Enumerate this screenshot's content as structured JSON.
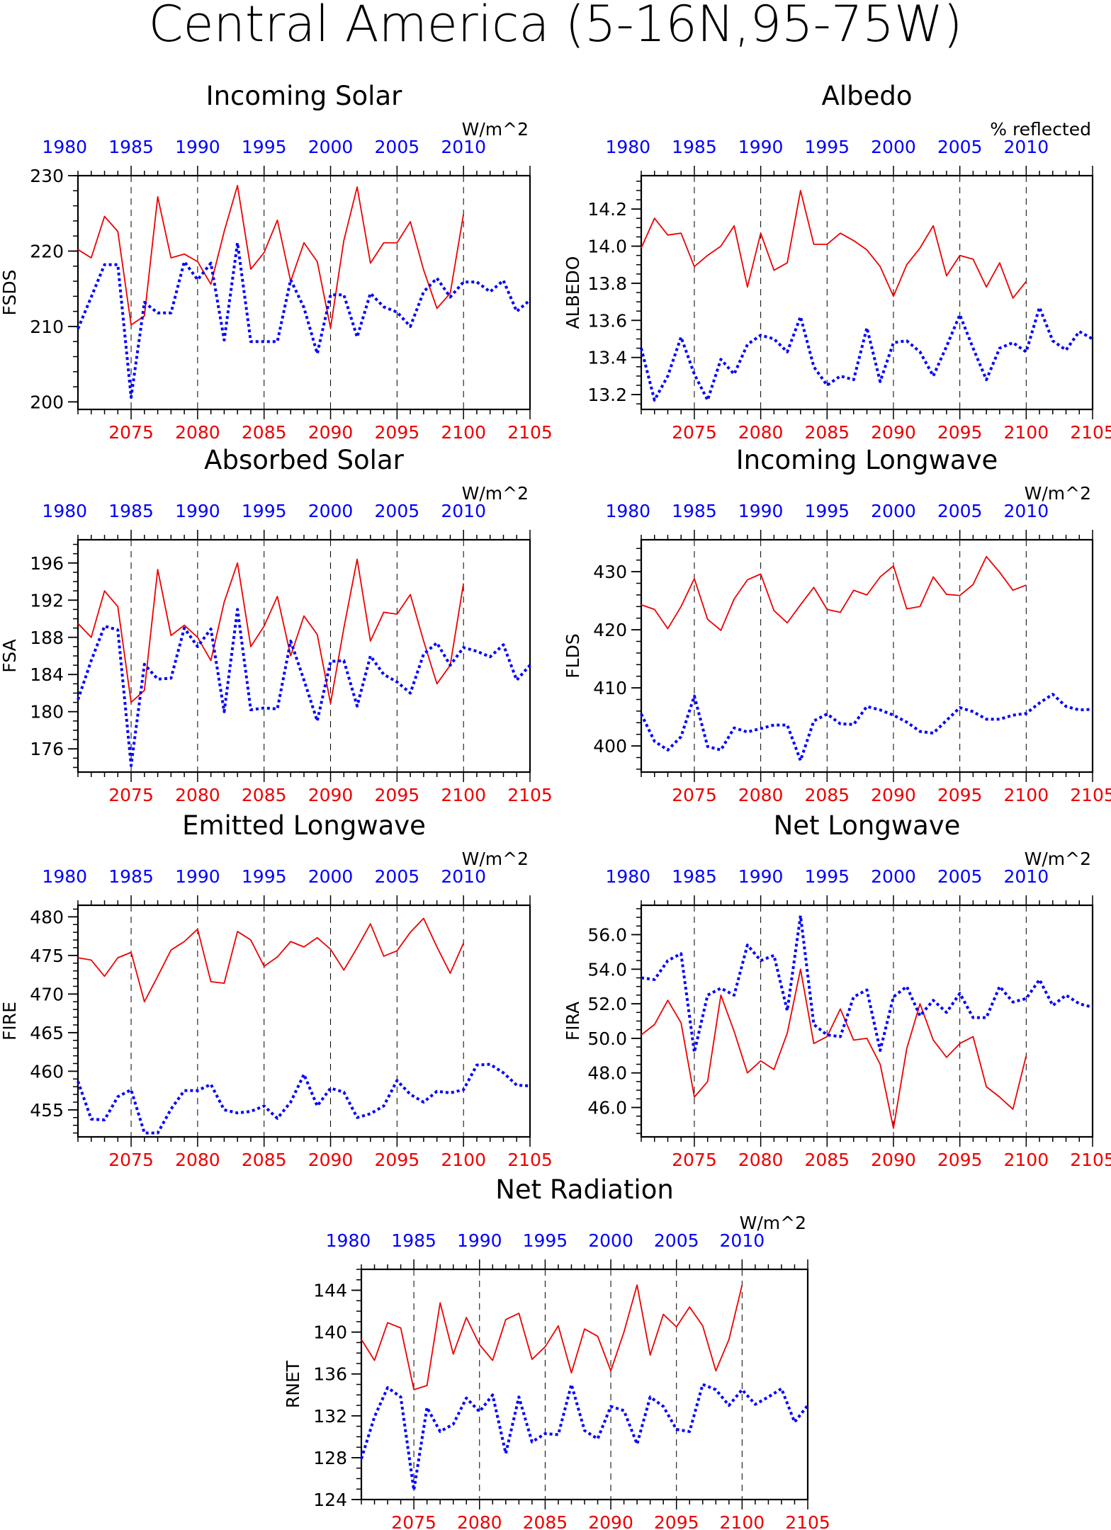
{
  "page_title": "Central America (5-16N,95-75W)",
  "colors": {
    "model_line": "#ee0000",
    "obs_line": "#0000ff",
    "model_axis_text": "#ee0000",
    "obs_axis_text": "#0000ff",
    "frame": "#000000",
    "grid": "#000000"
  },
  "chart_data": [
    {
      "id": "fsds",
      "type": "line",
      "title": "Incoming Solar",
      "units": "W/m^2",
      "ylabel": "FSDS",
      "x_bottom_ticks": [
        2075,
        2080,
        2085,
        2090,
        2095,
        2100,
        2105
      ],
      "x_top_ticks": [
        "1980",
        "1985",
        "1990",
        "1995",
        "2000",
        "2005",
        "2010"
      ],
      "xlim": [
        2071,
        2105
      ],
      "ylim": [
        199,
        230
      ],
      "yticks": [
        "200",
        "210",
        "220",
        "230"
      ],
      "ytick_values": [
        200,
        210,
        220,
        230
      ],
      "ytick_minor_step": 2,
      "grid_x": [
        2075,
        2080,
        2085,
        2090,
        2095,
        2100
      ],
      "series": [
        {
          "style": "solid",
          "color": "#ee0000",
          "x_start": 2071,
          "values": [
            220.2,
            219.1,
            224.6,
            222.6,
            210.2,
            211.4,
            227.2,
            219.1,
            219.6,
            218.6,
            215.6,
            222.6,
            228.7,
            217.6,
            219.8,
            224.1,
            216.0,
            221.1,
            218.6,
            209.8,
            221.4,
            228.5,
            218.4,
            221.1,
            221.1,
            223.9,
            217.5,
            212.4,
            214.4,
            224.9
          ]
        },
        {
          "style": "dotted",
          "color": "#0000ff",
          "x_start": 1980,
          "values": [
            209.7,
            213.9,
            218.2,
            218.2,
            200.6,
            213.2,
            211.8,
            211.8,
            218.6,
            216.2,
            218.4,
            208.2,
            221.1,
            208.0,
            208.0,
            208.0,
            216.2,
            212.5,
            206.4,
            214.2,
            214.2,
            208.6,
            214.4,
            212.6,
            211.9,
            210.0,
            214.6,
            216.4,
            213.9,
            215.9,
            215.9,
            214.6,
            216.1,
            212.0,
            213.5
          ]
        }
      ]
    },
    {
      "id": "albedo",
      "type": "line",
      "title": "Albedo",
      "units": "% reflected",
      "ylabel": "ALBEDO",
      "x_bottom_ticks": [
        2075,
        2080,
        2085,
        2090,
        2095,
        2100,
        2105
      ],
      "x_top_ticks": [
        "1980",
        "1985",
        "1990",
        "1995",
        "2000",
        "2005",
        "2010"
      ],
      "xlim": [
        2071,
        2105
      ],
      "ylim": [
        13.12,
        14.38
      ],
      "yticks": [
        "13.2",
        "13.4",
        "13.6",
        "13.8",
        "14.0",
        "14.2"
      ],
      "ytick_values": [
        13.2,
        13.4,
        13.6,
        13.8,
        14.0,
        14.2
      ],
      "ytick_minor_step": 0.05,
      "grid_x": [
        2075,
        2080,
        2085,
        2090,
        2095,
        2100
      ],
      "series": [
        {
          "style": "solid",
          "color": "#ee0000",
          "x_start": 2071,
          "values": [
            13.99,
            14.15,
            14.06,
            14.07,
            13.89,
            13.95,
            14.0,
            14.11,
            13.78,
            14.07,
            13.87,
            13.91,
            14.3,
            14.01,
            14.01,
            14.07,
            14.03,
            13.98,
            13.89,
            13.73,
            13.9,
            13.99,
            14.11,
            13.84,
            13.95,
            13.93,
            13.78,
            13.91,
            13.72,
            13.81
          ]
        },
        {
          "style": "dotted",
          "color": "#0000ff",
          "x_start": 1980,
          "values": [
            13.45,
            13.17,
            13.3,
            13.51,
            13.31,
            13.17,
            13.39,
            13.31,
            13.47,
            13.52,
            13.5,
            13.43,
            13.62,
            13.35,
            13.25,
            13.3,
            13.28,
            13.56,
            13.27,
            13.48,
            13.49,
            13.43,
            13.3,
            13.46,
            13.63,
            13.45,
            13.28,
            13.45,
            13.48,
            13.43,
            13.67,
            13.49,
            13.44,
            13.54,
            13.5
          ]
        }
      ]
    },
    {
      "id": "fsa",
      "type": "line",
      "title": "Absorbed Solar",
      "units": "W/m^2",
      "ylabel": "FSA",
      "x_bottom_ticks": [
        2075,
        2080,
        2085,
        2090,
        2095,
        2100,
        2105
      ],
      "x_top_ticks": [
        "1980",
        "1985",
        "1990",
        "1995",
        "2000",
        "2005",
        "2010"
      ],
      "xlim": [
        2071,
        2105
      ],
      "ylim": [
        173.5,
        198.5
      ],
      "yticks": [
        "176",
        "180",
        "184",
        "188",
        "192",
        "196"
      ],
      "ytick_values": [
        176,
        180,
        184,
        188,
        192,
        196
      ],
      "ytick_minor_step": 1,
      "grid_x": [
        2075,
        2080,
        2085,
        2090,
        2095,
        2100
      ],
      "series": [
        {
          "style": "solid",
          "color": "#ee0000",
          "x_start": 2071,
          "values": [
            189.5,
            188.0,
            193.0,
            191.3,
            181.0,
            182.3,
            195.3,
            188.2,
            189.3,
            188.0,
            185.5,
            191.8,
            196.0,
            187.0,
            189.2,
            192.4,
            186.0,
            190.3,
            188.3,
            180.9,
            189.0,
            196.4,
            187.6,
            190.7,
            190.5,
            192.6,
            187.6,
            183.0,
            185.0,
            193.8
          ]
        },
        {
          "style": "dotted",
          "color": "#0000ff",
          "x_start": 1980,
          "values": [
            181.3,
            185.5,
            189.2,
            188.8,
            174.2,
            185.1,
            183.5,
            183.6,
            189.0,
            187.0,
            188.9,
            180.0,
            191.0,
            180.2,
            180.4,
            180.3,
            187.6,
            183.4,
            179.0,
            185.4,
            185.5,
            180.6,
            186.0,
            184.0,
            183.2,
            182.0,
            186.2,
            187.4,
            185.0,
            186.9,
            186.5,
            185.9,
            187.2,
            183.4,
            185.0
          ]
        }
      ]
    },
    {
      "id": "flds",
      "type": "line",
      "title": "Incoming Longwave",
      "units": "W/m^2",
      "ylabel": "FLDS",
      "x_bottom_ticks": [
        2075,
        2080,
        2085,
        2090,
        2095,
        2100,
        2105
      ],
      "x_top_ticks": [
        "1980",
        "1985",
        "1990",
        "1995",
        "2000",
        "2005",
        "2010"
      ],
      "xlim": [
        2071,
        2105
      ],
      "ylim": [
        395.5,
        435.5
      ],
      "yticks": [
        "400",
        "410",
        "420",
        "430"
      ],
      "ytick_values": [
        400,
        410,
        420,
        430
      ],
      "ytick_minor_step": 2,
      "grid_x": [
        2075,
        2080,
        2085,
        2090,
        2095,
        2100
      ],
      "series": [
        {
          "style": "solid",
          "color": "#ee0000",
          "x_start": 2071,
          "values": [
            424.3,
            423.5,
            420.2,
            424.0,
            428.8,
            421.8,
            419.9,
            425.3,
            428.6,
            429.6,
            423.3,
            421.2,
            424.3,
            427.3,
            423.5,
            423.0,
            426.8,
            426.0,
            429.1,
            431.0,
            423.6,
            424.0,
            429.1,
            426.1,
            425.9,
            427.8,
            432.6,
            429.9,
            426.8,
            427.7
          ]
        },
        {
          "style": "dotted",
          "color": "#0000ff",
          "x_start": 1980,
          "values": [
            405.5,
            400.8,
            399.3,
            401.6,
            408.6,
            399.9,
            399.3,
            403.1,
            402.4,
            403.0,
            403.6,
            403.6,
            397.5,
            404.3,
            405.5,
            403.8,
            403.7,
            406.8,
            406.2,
            405.3,
            404.1,
            402.5,
            402.2,
            404.4,
            406.6,
            405.9,
            404.6,
            404.6,
            405.3,
            405.6,
            407.4,
            408.9,
            406.8,
            406.2,
            406.3
          ]
        }
      ]
    },
    {
      "id": "fire",
      "type": "line",
      "title": "Emitted Longwave",
      "units": "W/m^2",
      "ylabel": "FIRE",
      "x_bottom_ticks": [
        2075,
        2080,
        2085,
        2090,
        2095,
        2100,
        2105
      ],
      "x_top_ticks": [
        "1980",
        "1985",
        "1990",
        "1995",
        "2000",
        "2005",
        "2010"
      ],
      "xlim": [
        2071,
        2105
      ],
      "ylim": [
        451.5,
        481.5
      ],
      "yticks": [
        "455",
        "460",
        "465",
        "470",
        "475",
        "480"
      ],
      "ytick_values": [
        455,
        460,
        465,
        470,
        475,
        480
      ],
      "ytick_minor_step": 1,
      "grid_x": [
        2075,
        2080,
        2085,
        2090,
        2095,
        2100
      ],
      "series": [
        {
          "style": "solid",
          "color": "#ee0000",
          "x_start": 2071,
          "values": [
            474.7,
            474.4,
            472.3,
            474.7,
            475.4,
            469.0,
            472.3,
            475.7,
            476.8,
            478.4,
            471.6,
            471.4,
            478.1,
            477.0,
            473.6,
            474.8,
            476.8,
            476.1,
            477.3,
            475.8,
            473.1,
            476.0,
            479.1,
            474.9,
            475.6,
            478.0,
            479.8,
            476.1,
            472.7,
            476.6
          ]
        },
        {
          "style": "dotted",
          "color": "#0000ff",
          "x_start": 1980,
          "values": [
            458.7,
            453.8,
            453.7,
            456.7,
            457.6,
            452.0,
            452.0,
            455.1,
            457.5,
            457.5,
            458.3,
            455.0,
            454.6,
            454.8,
            455.5,
            453.9,
            456.0,
            459.6,
            455.5,
            457.8,
            457.3,
            454.0,
            454.5,
            455.5,
            458.8,
            457.0,
            456.0,
            457.4,
            457.2,
            457.6,
            460.8,
            460.9,
            459.8,
            458.2,
            458.1
          ]
        }
      ]
    },
    {
      "id": "fira",
      "type": "line",
      "title": "Net Longwave",
      "units": "W/m^2",
      "ylabel": "FIRA",
      "x_bottom_ticks": [
        2075,
        2080,
        2085,
        2090,
        2095,
        2100,
        2105
      ],
      "x_top_ticks": [
        "1980",
        "1985",
        "1990",
        "1995",
        "2000",
        "2005",
        "2010"
      ],
      "xlim": [
        2071,
        2105
      ],
      "ylim": [
        44.3,
        57.7
      ],
      "yticks": [
        "46.0",
        "48.0",
        "50.0",
        "52.0",
        "54.0",
        "56.0"
      ],
      "ytick_values": [
        46,
        48,
        50,
        52,
        54,
        56
      ],
      "ytick_minor_step": 0.5,
      "grid_x": [
        2075,
        2080,
        2085,
        2090,
        2095,
        2100
      ],
      "series": [
        {
          "style": "solid",
          "color": "#ee0000",
          "x_start": 2071,
          "values": [
            50.2,
            50.8,
            52.2,
            50.9,
            46.6,
            47.5,
            52.5,
            50.4,
            48.0,
            48.7,
            48.2,
            50.3,
            54.0,
            49.7,
            50.1,
            51.7,
            49.9,
            50.0,
            48.5,
            44.8,
            49.4,
            52.0,
            49.9,
            48.9,
            49.7,
            50.1,
            47.2,
            46.6,
            45.9,
            49.0
          ]
        },
        {
          "style": "dotted",
          "color": "#0000ff",
          "x_start": 1980,
          "values": [
            53.5,
            53.4,
            54.5,
            54.9,
            49.2,
            52.5,
            52.9,
            52.5,
            55.4,
            54.5,
            54.8,
            51.6,
            57.1,
            50.8,
            50.2,
            50.1,
            52.4,
            52.8,
            49.3,
            52.4,
            53.0,
            51.3,
            52.2,
            51.5,
            52.6,
            51.2,
            51.2,
            53.0,
            52.1,
            52.3,
            53.4,
            51.9,
            52.5,
            52.0,
            51.8
          ]
        }
      ]
    },
    {
      "id": "rnet",
      "type": "line",
      "title": "Net Radiation",
      "units": "W/m^2",
      "ylabel": "RNET",
      "x_bottom_ticks": [
        2075,
        2080,
        2085,
        2090,
        2095,
        2100,
        2105
      ],
      "x_top_ticks": [
        "1980",
        "1985",
        "1990",
        "1995",
        "2000",
        "2005",
        "2010"
      ],
      "xlim": [
        2071,
        2105
      ],
      "ylim": [
        124,
        146
      ],
      "yticks": [
        "124",
        "128",
        "132",
        "136",
        "140",
        "144"
      ],
      "ytick_values": [
        124,
        128,
        132,
        136,
        140,
        144
      ],
      "ytick_minor_step": 1,
      "grid_x": [
        2075,
        2080,
        2085,
        2090,
        2095,
        2100
      ],
      "series": [
        {
          "style": "solid",
          "color": "#ee0000",
          "x_start": 2071,
          "values": [
            139.3,
            137.3,
            140.9,
            140.4,
            134.5,
            134.9,
            142.8,
            137.9,
            141.4,
            138.8,
            137.3,
            141.2,
            141.8,
            137.4,
            138.6,
            140.6,
            136.1,
            140.3,
            139.6,
            136.3,
            140.0,
            144.5,
            137.8,
            141.7,
            140.5,
            142.4,
            140.6,
            136.3,
            139.3,
            144.5
          ]
        },
        {
          "style": "dotted",
          "color": "#0000ff",
          "x_start": 1980,
          "values": [
            127.9,
            131.9,
            134.7,
            133.8,
            124.9,
            132.8,
            130.5,
            131.2,
            133.7,
            132.4,
            134.0,
            128.4,
            133.8,
            129.5,
            130.3,
            130.2,
            135.0,
            130.6,
            129.8,
            132.9,
            132.5,
            129.3,
            133.8,
            132.9,
            130.7,
            130.5,
            135.0,
            134.5,
            133.0,
            134.5,
            133.1,
            133.8,
            134.6,
            131.4,
            133.0
          ]
        }
      ]
    }
  ]
}
